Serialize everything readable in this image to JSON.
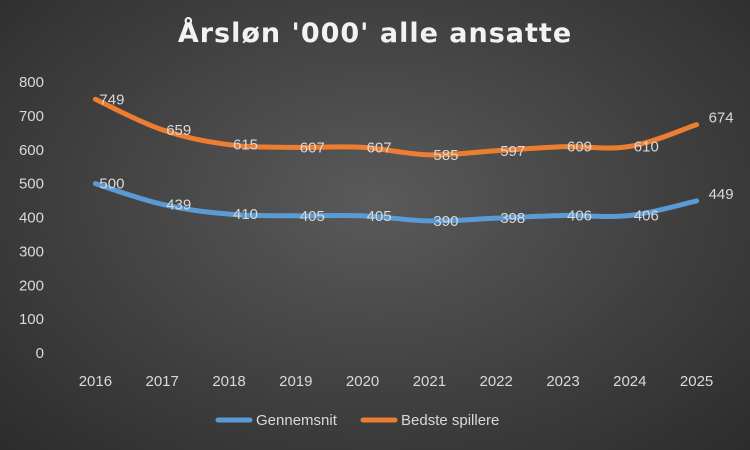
{
  "chart_data": {
    "type": "line",
    "title": "Årsløn '000' alle ansatte",
    "xlabel": "",
    "ylabel": "",
    "categories": [
      "2016",
      "2017",
      "2018",
      "2019",
      "2020",
      "2021",
      "2022",
      "2023",
      "2024",
      "2025"
    ],
    "ylim": [
      0,
      800
    ],
    "yticks": [
      0,
      100,
      200,
      300,
      400,
      500,
      600,
      700,
      800
    ],
    "grid": false,
    "legend": "bottom",
    "series": [
      {
        "name": "Gennemsnit",
        "color": "#5b9bd5",
        "values": [
          500,
          439,
          410,
          405,
          405,
          390,
          398,
          406,
          406,
          449
        ]
      },
      {
        "name": "Bedste spillere",
        "color": "#ed7d31",
        "values": [
          749,
          659,
          615,
          607,
          607,
          585,
          597,
          609,
          610,
          674
        ]
      }
    ]
  }
}
